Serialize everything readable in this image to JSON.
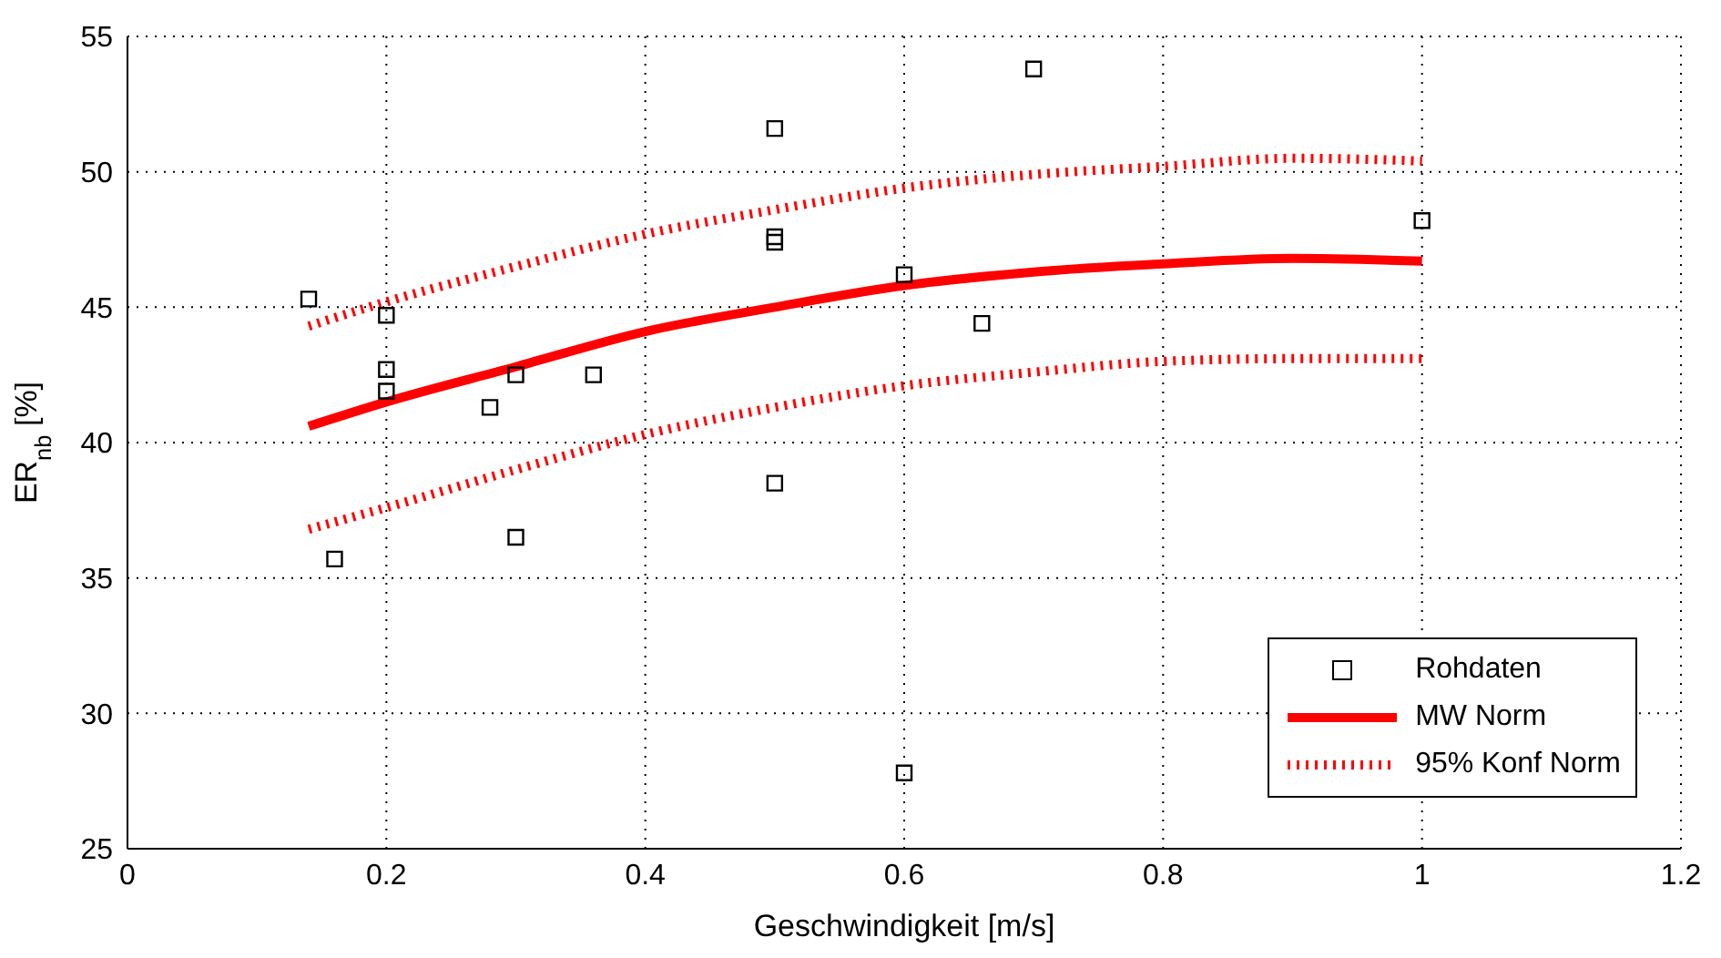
{
  "chart_data": {
    "type": "scatter",
    "xlabel": "Geschwindigkeit [m/s]",
    "ylabel": "ER$_{nb}$ [%]",
    "xlim": [
      0,
      1.2
    ],
    "xticks": [
      0,
      0.2,
      0.4,
      0.6,
      0.8,
      1,
      1.2
    ],
    "ylim": [
      25,
      55
    ],
    "yticks": [
      25,
      30,
      35,
      40,
      45,
      50,
      55
    ],
    "grid": true,
    "legend": "bottom right",
    "series": [
      {
        "name": "Rohdaten",
        "marker": "square",
        "color": "#000000",
        "x": [
          0.14,
          0.16,
          0.2,
          0.2,
          0.2,
          0.28,
          0.3,
          0.3,
          0.36,
          0.5,
          0.5,
          0.5,
          0.5,
          0.6,
          0.6,
          0.66,
          0.7,
          1.0
        ],
        "values": [
          45.3,
          35.7,
          44.7,
          42.7,
          41.9,
          41.3,
          42.5,
          36.5,
          42.5,
          51.6,
          47.6,
          47.4,
          38.5,
          46.2,
          27.8,
          44.4,
          53.8,
          48.2
        ]
      },
      {
        "name": "MW Norm",
        "type": "line",
        "marker": "none",
        "line_style": "solid",
        "color": "#ff0000",
        "x": [
          0.14,
          0.2,
          0.3,
          0.4,
          0.5,
          0.6,
          0.7,
          0.8,
          0.9,
          1.0
        ],
        "values": [
          40.6,
          41.5,
          42.8,
          44.1,
          45.0,
          45.8,
          46.3,
          46.6,
          46.8,
          46.7
        ]
      },
      {
        "name": "95% Konf Norm",
        "type": "line",
        "marker": "none",
        "line_style": "dotted",
        "color": "#ff0000",
        "x": [
          0.14,
          0.2,
          0.3,
          0.4,
          0.5,
          0.6,
          0.7,
          0.8,
          0.9,
          1.0
        ],
        "values": [
          44.3,
          45.2,
          46.5,
          47.7,
          48.6,
          49.4,
          49.9,
          50.2,
          50.5,
          50.4
        ]
      },
      {
        "type": "line",
        "marker": "none",
        "line_style": "dotted",
        "color": "#ff0000",
        "x": [
          0.14,
          0.2,
          0.3,
          0.4,
          0.5,
          0.6,
          0.7,
          0.8,
          0.9,
          1.0
        ],
        "values": [
          36.8,
          37.6,
          39.0,
          40.3,
          41.3,
          42.1,
          42.6,
          43.0,
          43.1,
          43.1
        ]
      }
    ]
  }
}
